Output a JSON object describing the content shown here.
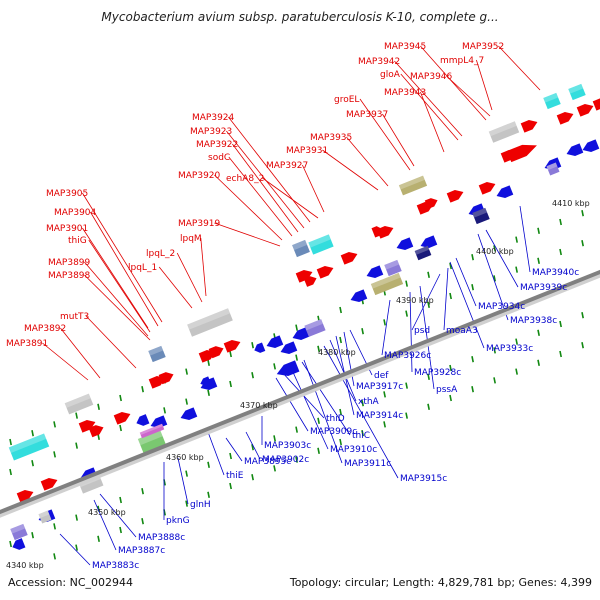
{
  "title": "Mycobacterium avium subsp. paratuberculosis K-10, complete g...",
  "footer": {
    "accession": "Accession: NC_002944",
    "summary": "Topology: circular; Length: 4,829,781 bp; Genes: 4,399"
  },
  "colors": {
    "forward_gene": "#ee0000",
    "reverse_gene": "#1010dd",
    "backbone": "#808080",
    "tick": "#118811",
    "cyan_feature": "#33dddd",
    "gray_feature": "#c4c4c4",
    "olive_feature": "#b8b070",
    "navy_feature": "#1a1a7a",
    "slate_feature": "#6a8ab8",
    "purple_feature": "#8a7ad8"
  },
  "kbp_labels": [
    "4340 kbp",
    "4350 kbp",
    "4360 kbp",
    "4370 kbp",
    "4380 kbp",
    "4390 kbp",
    "4400 kbp",
    "4410 kbp"
  ],
  "forward_labels": [
    "MAP3891",
    "MAP3892",
    "mutT3",
    "MAP3898",
    "MAP3899",
    "thiG",
    "MAP3901",
    "MAP3904",
    "MAP3905",
    "lpqL_1",
    "lpqL_2",
    "lpqM",
    "MAP3919",
    "MAP3920",
    "sodC",
    "MAP3922",
    "MAP3923",
    "MAP3924",
    "echA8_2",
    "MAP3927",
    "MAP3931",
    "MAP3935",
    "groEL",
    "MAP3937",
    "MAP3943",
    "gloA",
    "MAP3942",
    "MAP3945",
    "MAP3946",
    "mmpL4_7",
    "MAP3952"
  ],
  "reverse_labels": [
    "MAP3883c",
    "MAP3887c",
    "MAP3888c",
    "pknG",
    "glnH",
    "thiE",
    "MAP3895c",
    "MAP3902c",
    "MAP3903c",
    "MAP3909c",
    "thiD",
    "MAP3910c",
    "thiC",
    "MAP3911c",
    "MAP3915c",
    "xthA",
    "MAP3914c",
    "MAP3917c",
    "def",
    "MAP3926c",
    "MAP3928c",
    "pssA",
    "psd",
    "moaA3",
    "MAP3933c",
    "MAP3934c",
    "MAP3938c",
    "MAP3939c",
    "MAP3940c"
  ]
}
